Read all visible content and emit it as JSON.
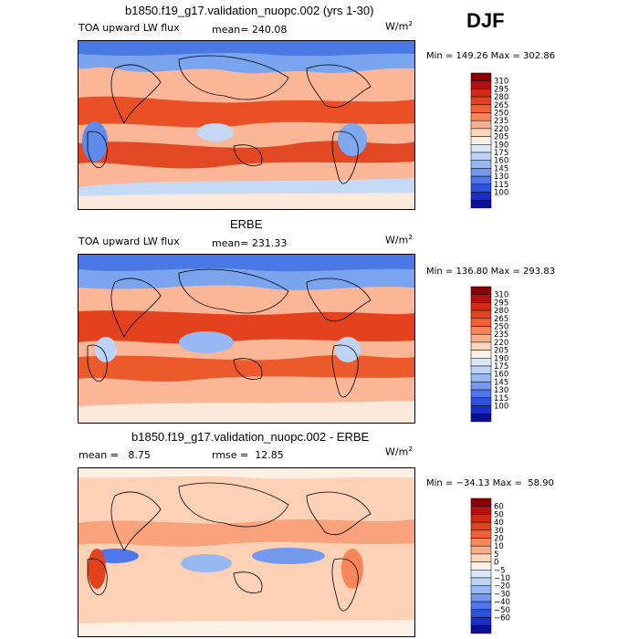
{
  "season": "DJF",
  "chart_data": [
    {
      "type": "heatmap",
      "title": "b1850.f19_g17.validation_nuopc.002 (yrs 1-30)",
      "variable": "TOA upward LW flux",
      "mean_text": "mean= 240.08",
      "units": "W/m",
      "units_exp": "2",
      "minmax_text": "Min = 149.26 Max = 302.86",
      "min": 149.26,
      "max": 302.86,
      "mean": 240.08,
      "colorbar": {
        "levels": [
          310,
          295,
          280,
          265,
          250,
          235,
          220,
          205,
          190,
          175,
          160,
          145,
          130,
          115,
          100
        ],
        "colors": [
          "#8b0000",
          "#b30f0f",
          "#d32a16",
          "#e4421e",
          "#ef6236",
          "#f7865a",
          "#fbae8a",
          "#fdd5bd",
          "#fdf1e6",
          "#dbe8fa",
          "#bdd4f7",
          "#98b8f3",
          "#7399ef",
          "#4e78ea",
          "#2f52de",
          "#1a2fc8",
          "#0a0f94"
        ]
      }
    },
    {
      "type": "heatmap",
      "title": "ERBE",
      "variable": "TOA upward LW flux",
      "mean_text": "mean= 231.33",
      "units": "W/m",
      "units_exp": "2",
      "minmax_text": "Min = 136.80 Max = 293.83",
      "min": 136.8,
      "max": 293.83,
      "mean": 231.33,
      "colorbar": {
        "levels": [
          310,
          295,
          280,
          265,
          250,
          235,
          220,
          205,
          190,
          175,
          160,
          145,
          130,
          115,
          100
        ],
        "colors": [
          "#8b0000",
          "#b30f0f",
          "#d32a16",
          "#e4421e",
          "#ef6236",
          "#f7865a",
          "#fbae8a",
          "#fdd5bd",
          "#fdf1e6",
          "#dbe8fa",
          "#bdd4f7",
          "#98b8f3",
          "#7399ef",
          "#4e78ea",
          "#2f52de",
          "#1a2fc8",
          "#0a0f94"
        ]
      }
    },
    {
      "type": "heatmap",
      "title": "b1850.f19_g17.validation_nuopc.002 - ERBE",
      "variable": "",
      "mean_text": "mean =   8.75",
      "rmse_text": "rmse =  12.85",
      "units": "W/m",
      "units_exp": "2",
      "minmax_text": "Min = −34.13 Max =  58.90",
      "min": -34.13,
      "max": 58.9,
      "mean": 8.75,
      "rmse": 12.85,
      "colorbar": {
        "levels": [
          60,
          50,
          40,
          30,
          20,
          10,
          5,
          0,
          -5,
          -10,
          -20,
          -30,
          -40,
          -50,
          -60
        ],
        "colors": [
          "#8b0000",
          "#b30f0f",
          "#d32a16",
          "#e4421e",
          "#ef6236",
          "#f7865a",
          "#fbae8a",
          "#fdd5bd",
          "#fdf1e6",
          "#dbe8fa",
          "#bdd4f7",
          "#98b8f3",
          "#7399ef",
          "#4e78ea",
          "#2f52de",
          "#1a2fc8",
          "#0a0f94"
        ]
      }
    }
  ]
}
